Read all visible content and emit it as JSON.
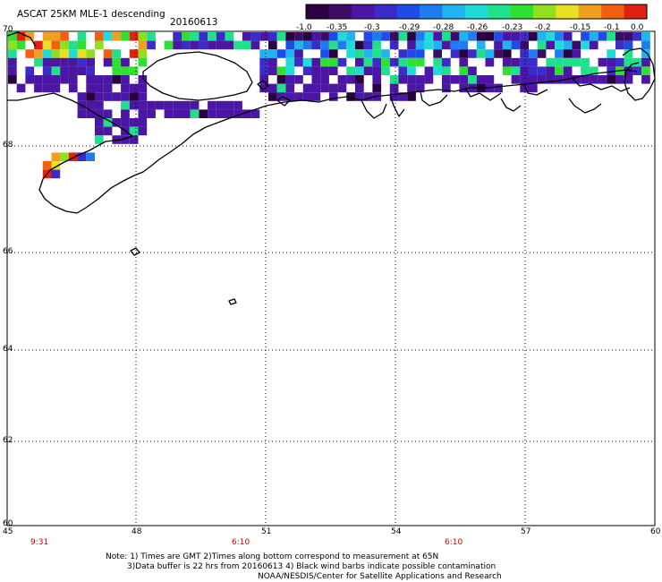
{
  "title": "ASCAT 25KM MLE-1 descending",
  "date": "20160613",
  "colorbar": {
    "colors": [
      "#2a0040",
      "#3d0a66",
      "#4b16a3",
      "#3b2cc8",
      "#1f4bea",
      "#1f7cf0",
      "#1fb3f0",
      "#20dcd8",
      "#20e08c",
      "#30e030",
      "#90e020",
      "#e8e020",
      "#f0a020",
      "#f06010",
      "#e02010"
    ],
    "labels": [
      "-1.0",
      "-0.35",
      "-0.3",
      "-0.29",
      "-0.28",
      "-0.26",
      "-0.23",
      "-0.2",
      "-0.15",
      "-0.1",
      "0.0"
    ]
  },
  "axes": {
    "y_labels": [
      "70",
      "68",
      "66",
      "64",
      "62",
      "60"
    ],
    "x_labels": [
      "45",
      "48",
      "51",
      "54",
      "57",
      "60"
    ]
  },
  "time_marks": [
    "9:31",
    "6:10",
    "6:10"
  ],
  "notes": [
    "Note: 1) Times are GMT 2)Times along bottom correspond to measurement at 65N",
    "3)Data buffer is 22 hrs from 20160613 4) Black wind barbs indicate possible contamination",
    "NOAA/NESDIS/Center for Satellite Applications and Research"
  ]
}
